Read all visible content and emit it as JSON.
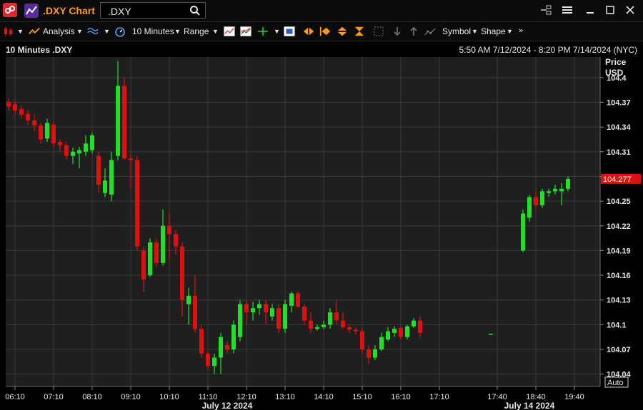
{
  "window": {
    "title": ".DXY Chart",
    "symbol_value": ".DXY"
  },
  "toolbar": {
    "analysis_label": "Analysis",
    "interval_label": "10 Minutes",
    "range_label": "Range",
    "symbol_label": "Symbol",
    "shape_label": "Shape"
  },
  "header": {
    "chart_title": "10 Minutes .DXY",
    "date_range": "5:50 AM 7/12/2024 - 8:20 PM 7/14/2024 (NYC)"
  },
  "colors": {
    "up": "#22e02a",
    "down": "#e01010",
    "grid": "#3a3a3a",
    "last_price_tag": "#e01010"
  },
  "chart_data": {
    "type": "candlestick",
    "axis": {
      "price_label": "Price",
      "currency_label": "USD",
      "auto_label": "Auto"
    },
    "last_price": 104.277,
    "last_price_label": "104.277",
    "y_ticks": [
      "104.4",
      "104.37",
      "104.34",
      "104.31",
      "104.28",
      "104.25",
      "104.22",
      "104.19",
      "104.16",
      "104.13",
      "104.1",
      "104.07",
      "104.04"
    ],
    "y_tick_values": [
      104.4,
      104.37,
      104.34,
      104.31,
      104.28,
      104.25,
      104.22,
      104.19,
      104.16,
      104.13,
      104.1,
      104.07,
      104.04
    ],
    "ylim": [
      104.025,
      104.425
    ],
    "x_ticks": [
      "06:10",
      "07:10",
      "08:10",
      "09:10",
      "10:10",
      "11:10",
      "12:10",
      "13:10",
      "14:10",
      "15:10",
      "16:10",
      "17:10",
      "17:40",
      "18:40",
      "19:40"
    ],
    "x_tick_slots": [
      1,
      7,
      13,
      19,
      25,
      31,
      37,
      43,
      49,
      55,
      61,
      67,
      76,
      82,
      88
    ],
    "date_labels": [
      "July 12 2024",
      "July 14 2024"
    ],
    "date_label_slots": [
      34,
      81
    ],
    "total_slots": 92,
    "candles": [
      {
        "i": 0,
        "o": 104.37,
        "h": 104.375,
        "l": 104.36,
        "c": 104.365
      },
      {
        "i": 1,
        "o": 104.368,
        "h": 104.372,
        "l": 104.355,
        "c": 104.36
      },
      {
        "i": 2,
        "o": 104.362,
        "h": 104.366,
        "l": 104.35,
        "c": 104.355
      },
      {
        "i": 3,
        "o": 104.356,
        "h": 104.36,
        "l": 104.342,
        "c": 104.348
      },
      {
        "i": 4,
        "o": 104.348,
        "h": 104.355,
        "l": 104.335,
        "c": 104.342
      },
      {
        "i": 5,
        "o": 104.342,
        "h": 104.345,
        "l": 104.32,
        "c": 104.325
      },
      {
        "i": 6,
        "o": 104.326,
        "h": 104.35,
        "l": 104.322,
        "c": 104.345
      },
      {
        "i": 7,
        "o": 104.343,
        "h": 104.347,
        "l": 104.315,
        "c": 104.32
      },
      {
        "i": 8,
        "o": 104.322,
        "h": 104.325,
        "l": 104.31,
        "c": 104.318
      },
      {
        "i": 9,
        "o": 104.318,
        "h": 104.322,
        "l": 104.3,
        "c": 104.305
      },
      {
        "i": 10,
        "o": 104.305,
        "h": 104.315,
        "l": 104.295,
        "c": 104.31
      },
      {
        "i": 11,
        "o": 104.308,
        "h": 104.316,
        "l": 104.29,
        "c": 104.312
      },
      {
        "i": 12,
        "o": 104.31,
        "h": 104.33,
        "l": 104.305,
        "c": 104.32
      },
      {
        "i": 13,
        "o": 104.312,
        "h": 104.333,
        "l": 104.308,
        "c": 104.33
      },
      {
        "i": 14,
        "o": 104.305,
        "h": 104.31,
        "l": 104.26,
        "c": 104.27
      },
      {
        "i": 15,
        "o": 104.26,
        "h": 104.29,
        "l": 104.255,
        "c": 104.275
      },
      {
        "i": 16,
        "o": 104.258,
        "h": 104.31,
        "l": 104.25,
        "c": 104.3
      },
      {
        "i": 17,
        "o": 104.305,
        "h": 104.42,
        "l": 104.3,
        "c": 104.39
      },
      {
        "i": 18,
        "o": 104.39,
        "h": 104.4,
        "l": 104.3,
        "c": 104.302
      },
      {
        "i": 19,
        "o": 104.302,
        "h": 104.308,
        "l": 104.265,
        "c": 104.3
      },
      {
        "i": 20,
        "o": 104.3,
        "h": 104.305,
        "l": 104.19,
        "c": 104.195
      },
      {
        "i": 21,
        "o": 104.19,
        "h": 104.195,
        "l": 104.14,
        "c": 104.155
      },
      {
        "i": 22,
        "o": 104.16,
        "h": 104.205,
        "l": 104.158,
        "c": 104.2
      },
      {
        "i": 23,
        "o": 104.2,
        "h": 104.205,
        "l": 104.17,
        "c": 104.175
      },
      {
        "i": 24,
        "o": 104.175,
        "h": 104.24,
        "l": 104.172,
        "c": 104.22
      },
      {
        "i": 25,
        "o": 104.22,
        "h": 104.235,
        "l": 104.18,
        "c": 104.21
      },
      {
        "i": 26,
        "o": 104.21,
        "h": 104.215,
        "l": 104.185,
        "c": 104.195
      },
      {
        "i": 27,
        "o": 104.195,
        "h": 104.2,
        "l": 104.11,
        "c": 104.13
      },
      {
        "i": 28,
        "o": 104.125,
        "h": 104.145,
        "l": 104.1,
        "c": 104.135
      },
      {
        "i": 29,
        "o": 104.135,
        "h": 104.16,
        "l": 104.09,
        "c": 104.095
      },
      {
        "i": 30,
        "o": 104.095,
        "h": 104.1,
        "l": 104.06,
        "c": 104.065
      },
      {
        "i": 31,
        "o": 104.065,
        "h": 104.068,
        "l": 104.045,
        "c": 104.05
      },
      {
        "i": 32,
        "o": 104.05,
        "h": 104.065,
        "l": 104.04,
        "c": 104.06
      },
      {
        "i": 33,
        "o": 104.06,
        "h": 104.09,
        "l": 104.04,
        "c": 104.085
      },
      {
        "i": 34,
        "o": 104.075,
        "h": 104.08,
        "l": 104.065,
        "c": 104.07
      },
      {
        "i": 35,
        "o": 104.07,
        "h": 104.105,
        "l": 104.065,
        "c": 104.1
      },
      {
        "i": 36,
        "o": 104.085,
        "h": 104.13,
        "l": 104.08,
        "c": 104.125
      },
      {
        "i": 37,
        "o": 104.125,
        "h": 104.13,
        "l": 104.1,
        "c": 104.115
      },
      {
        "i": 38,
        "o": 104.115,
        "h": 104.128,
        "l": 104.105,
        "c": 104.12
      },
      {
        "i": 39,
        "o": 104.12,
        "h": 104.13,
        "l": 104.112,
        "c": 104.125
      },
      {
        "i": 40,
        "o": 104.125,
        "h": 104.13,
        "l": 104.1,
        "c": 104.115
      },
      {
        "i": 41,
        "o": 104.11,
        "h": 104.125,
        "l": 104.105,
        "c": 104.12
      },
      {
        "i": 42,
        "o": 104.12,
        "h": 104.125,
        "l": 104.09,
        "c": 104.095
      },
      {
        "i": 43,
        "o": 104.095,
        "h": 104.13,
        "l": 104.09,
        "c": 104.125
      },
      {
        "i": 44,
        "o": 104.123,
        "h": 104.14,
        "l": 104.115,
        "c": 104.138
      },
      {
        "i": 45,
        "o": 104.138,
        "h": 104.14,
        "l": 104.12,
        "c": 104.122
      },
      {
        "i": 46,
        "o": 104.122,
        "h": 104.125,
        "l": 104.1,
        "c": 104.105
      },
      {
        "i": 47,
        "o": 104.105,
        "h": 104.115,
        "l": 104.09,
        "c": 104.095
      },
      {
        "i": 48,
        "o": 104.095,
        "h": 104.1,
        "l": 104.093,
        "c": 104.097
      },
      {
        "i": 49,
        "o": 104.097,
        "h": 104.105,
        "l": 104.095,
        "c": 104.1
      },
      {
        "i": 50,
        "o": 104.1,
        "h": 104.12,
        "l": 104.095,
        "c": 104.115
      },
      {
        "i": 51,
        "o": 104.115,
        "h": 104.13,
        "l": 104.1,
        "c": 104.105
      },
      {
        "i": 52,
        "o": 104.105,
        "h": 104.115,
        "l": 104.095,
        "c": 104.097
      },
      {
        "i": 53,
        "o": 104.097,
        "h": 104.1,
        "l": 104.09,
        "c": 104.094
      },
      {
        "i": 54,
        "o": 104.094,
        "h": 104.097,
        "l": 104.088,
        "c": 104.092
      },
      {
        "i": 55,
        "o": 104.092,
        "h": 104.095,
        "l": 104.065,
        "c": 104.07
      },
      {
        "i": 56,
        "o": 104.07,
        "h": 104.075,
        "l": 104.052,
        "c": 104.06
      },
      {
        "i": 57,
        "o": 104.06,
        "h": 104.075,
        "l": 104.057,
        "c": 104.07
      },
      {
        "i": 58,
        "o": 104.07,
        "h": 104.09,
        "l": 104.068,
        "c": 104.085
      },
      {
        "i": 59,
        "o": 104.082,
        "h": 104.097,
        "l": 104.08,
        "c": 104.092
      },
      {
        "i": 60,
        "o": 104.09,
        "h": 104.098,
        "l": 104.085,
        "c": 104.095
      },
      {
        "i": 61,
        "o": 104.096,
        "h": 104.098,
        "l": 104.082,
        "c": 104.085
      },
      {
        "i": 62,
        "o": 104.085,
        "h": 104.1,
        "l": 104.082,
        "c": 104.098
      },
      {
        "i": 63,
        "o": 104.098,
        "h": 104.108,
        "l": 104.096,
        "c": 104.105
      },
      {
        "i": 64,
        "o": 104.105,
        "h": 104.11,
        "l": 104.085,
        "c": 104.09
      },
      {
        "i": 75,
        "o": 104.089,
        "h": 104.089,
        "l": 104.089,
        "c": 104.089
      },
      {
        "i": 80,
        "o": 104.19,
        "h": 104.24,
        "l": 104.188,
        "c": 104.235
      },
      {
        "i": 81,
        "o": 104.23,
        "h": 104.258,
        "l": 104.225,
        "c": 104.255
      },
      {
        "i": 82,
        "o": 104.255,
        "h": 104.262,
        "l": 104.24,
        "c": 104.245
      },
      {
        "i": 83,
        "o": 104.245,
        "h": 104.265,
        "l": 104.242,
        "c": 104.262
      },
      {
        "i": 84,
        "o": 104.26,
        "h": 104.265,
        "l": 104.255,
        "c": 104.262
      },
      {
        "i": 85,
        "o": 104.262,
        "h": 104.27,
        "l": 104.258,
        "c": 104.265
      },
      {
        "i": 86,
        "o": 104.262,
        "h": 104.272,
        "l": 104.245,
        "c": 104.265
      },
      {
        "i": 87,
        "o": 104.265,
        "h": 104.28,
        "l": 104.262,
        "c": 104.277
      }
    ]
  }
}
